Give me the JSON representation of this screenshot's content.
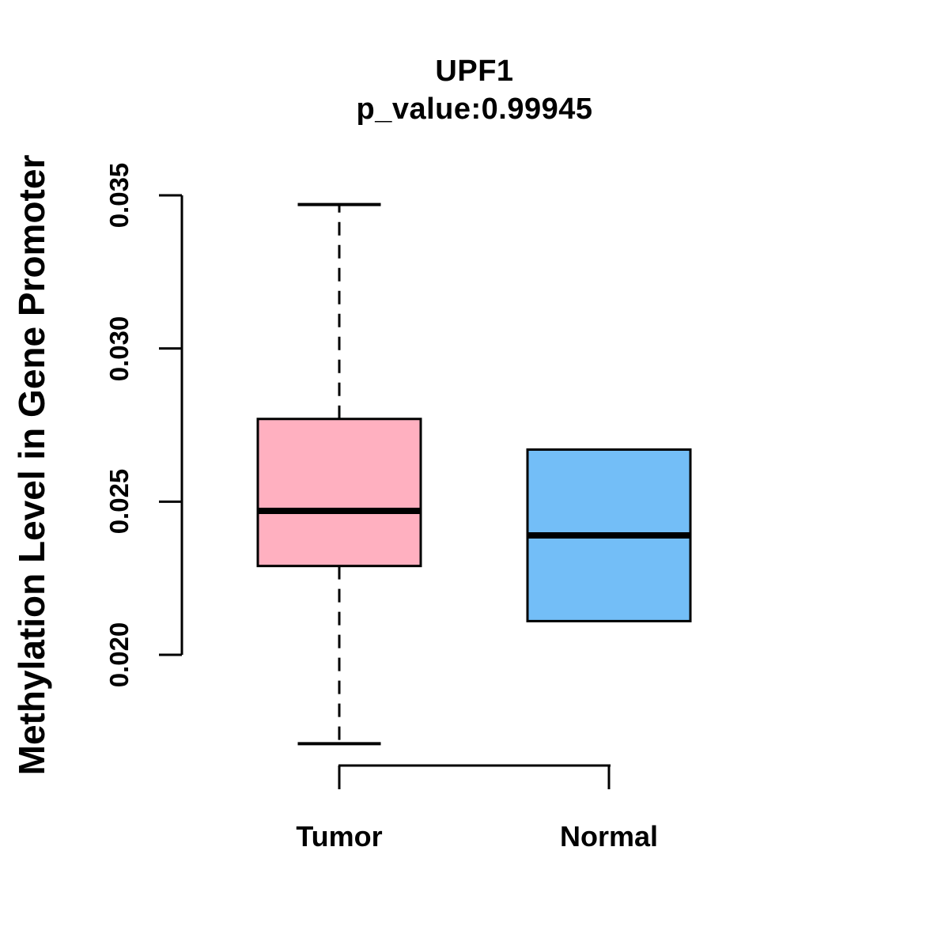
{
  "chart_data": {
    "type": "box",
    "title": "UPF1",
    "subtitle": "p_value:0.99945",
    "ylabel": "Methylation Level in Gene Promoter",
    "xlabel": "",
    "categories": [
      "Tumor",
      "Normal"
    ],
    "yticks": [
      0.02,
      0.025,
      0.03,
      0.035
    ],
    "ytick_labels": [
      "0.020",
      "0.025",
      "0.030",
      "0.035"
    ],
    "ylim": [
      0.0165,
      0.0352
    ],
    "grid": false,
    "legend": null,
    "axis_color": "#000000",
    "series": [
      {
        "name": "Tumor",
        "box_color": "#FFB0C0",
        "border_color": "#000000",
        "lower_whisker": 0.0171,
        "q1": 0.0229,
        "median": 0.0247,
        "q3": 0.0277,
        "upper_whisker": 0.0347,
        "outliers": []
      },
      {
        "name": "Normal",
        "box_color": "#73BEF7",
        "border_color": "#000000",
        "lower_whisker": 0.0211,
        "q1": 0.0211,
        "median": 0.0239,
        "q3": 0.0267,
        "upper_whisker": 0.0267,
        "outliers": []
      }
    ]
  }
}
